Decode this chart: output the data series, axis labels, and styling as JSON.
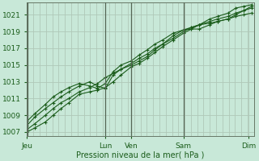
{
  "xlabel": "Pression niveau de la mer( hPa )",
  "bg_color": "#c8e8d8",
  "plot_bg_color": "#c8e8d8",
  "grid_color": "#b0c8b8",
  "line_color": "#1a5c1a",
  "ylim": [
    1006.5,
    1022.5
  ],
  "yticks": [
    1007,
    1009,
    1011,
    1013,
    1015,
    1017,
    1019,
    1021
  ],
  "x_day_labels": [
    "Jeu",
    "Lun",
    "Ven",
    "Sam",
    "Dim"
  ],
  "x_day_positions": [
    0.0,
    3.0,
    4.0,
    6.0,
    8.5
  ],
  "series": [
    {
      "x": [
        0.0,
        0.3,
        0.7,
        1.0,
        1.3,
        1.6,
        2.0,
        2.4,
        2.7,
        3.0,
        3.3,
        3.6,
        4.0,
        4.3,
        4.6,
        4.9,
        5.2,
        5.6,
        6.0,
        6.3,
        6.6,
        7.0,
        7.3,
        7.7,
        8.0,
        8.3,
        8.6
      ],
      "y": [
        1007.0,
        1007.5,
        1008.2,
        1009.0,
        1009.8,
        1010.5,
        1011.5,
        1011.8,
        1012.0,
        1012.3,
        1013.0,
        1013.8,
        1014.8,
        1015.2,
        1015.8,
        1016.5,
        1017.2,
        1018.0,
        1018.8,
        1019.3,
        1019.8,
        1020.5,
        1020.8,
        1021.2,
        1021.8,
        1022.0,
        1022.2
      ]
    },
    {
      "x": [
        0.0,
        0.3,
        0.7,
        1.0,
        1.3,
        1.6,
        2.0,
        2.4,
        2.7,
        3.0,
        3.3,
        3.6,
        4.0,
        4.3,
        4.6,
        4.9,
        5.2,
        5.6,
        6.0,
        6.3,
        6.6,
        7.0,
        7.3,
        7.7,
        8.0,
        8.3,
        8.6
      ],
      "y": [
        1007.3,
        1008.0,
        1009.0,
        1009.8,
        1010.5,
        1011.0,
        1011.8,
        1012.3,
        1012.8,
        1013.5,
        1014.0,
        1014.5,
        1015.0,
        1015.5,
        1016.0,
        1016.8,
        1017.5,
        1018.5,
        1019.2,
        1019.3,
        1019.3,
        1019.8,
        1020.2,
        1020.5,
        1021.0,
        1021.5,
        1022.0
      ]
    },
    {
      "x": [
        0.0,
        0.3,
        0.7,
        1.0,
        1.3,
        1.6,
        2.0,
        2.4,
        2.7,
        3.0,
        3.3,
        3.6,
        4.0,
        4.3,
        4.6,
        4.9,
        5.2,
        5.6,
        6.0,
        6.3,
        6.6,
        7.0,
        7.3,
        7.7,
        8.0,
        8.3,
        8.6
      ],
      "y": [
        1007.8,
        1008.8,
        1009.8,
        1010.5,
        1011.2,
        1011.8,
        1012.5,
        1013.0,
        1012.5,
        1012.2,
        1013.8,
        1014.5,
        1015.2,
        1015.8,
        1016.3,
        1017.0,
        1017.5,
        1018.2,
        1019.0,
        1019.5,
        1019.8,
        1020.0,
        1020.2,
        1020.5,
        1020.8,
        1021.0,
        1021.2
      ]
    },
    {
      "x": [
        0.0,
        0.3,
        0.7,
        1.0,
        1.3,
        1.6,
        2.0,
        2.4,
        2.7,
        3.0,
        3.3,
        3.6,
        4.0,
        4.3,
        4.6,
        4.9,
        5.2,
        5.6,
        6.0,
        6.3,
        6.6,
        7.0,
        7.3,
        7.7,
        8.0,
        8.3,
        8.6
      ],
      "y": [
        1008.3,
        1009.2,
        1010.3,
        1011.2,
        1011.8,
        1012.3,
        1012.8,
        1012.5,
        1012.2,
        1012.8,
        1014.2,
        1015.0,
        1015.5,
        1016.2,
        1016.8,
        1017.5,
        1018.0,
        1018.8,
        1019.2,
        1019.5,
        1019.8,
        1020.2,
        1020.5,
        1020.8,
        1021.2,
        1021.5,
        1021.8
      ]
    }
  ],
  "vline_positions": [
    0.02,
    3.0,
    4.0,
    6.0
  ],
  "x_range": [
    0.0,
    8.7
  ],
  "xlabel_fontsize": 7,
  "tick_fontsize": 6.5
}
